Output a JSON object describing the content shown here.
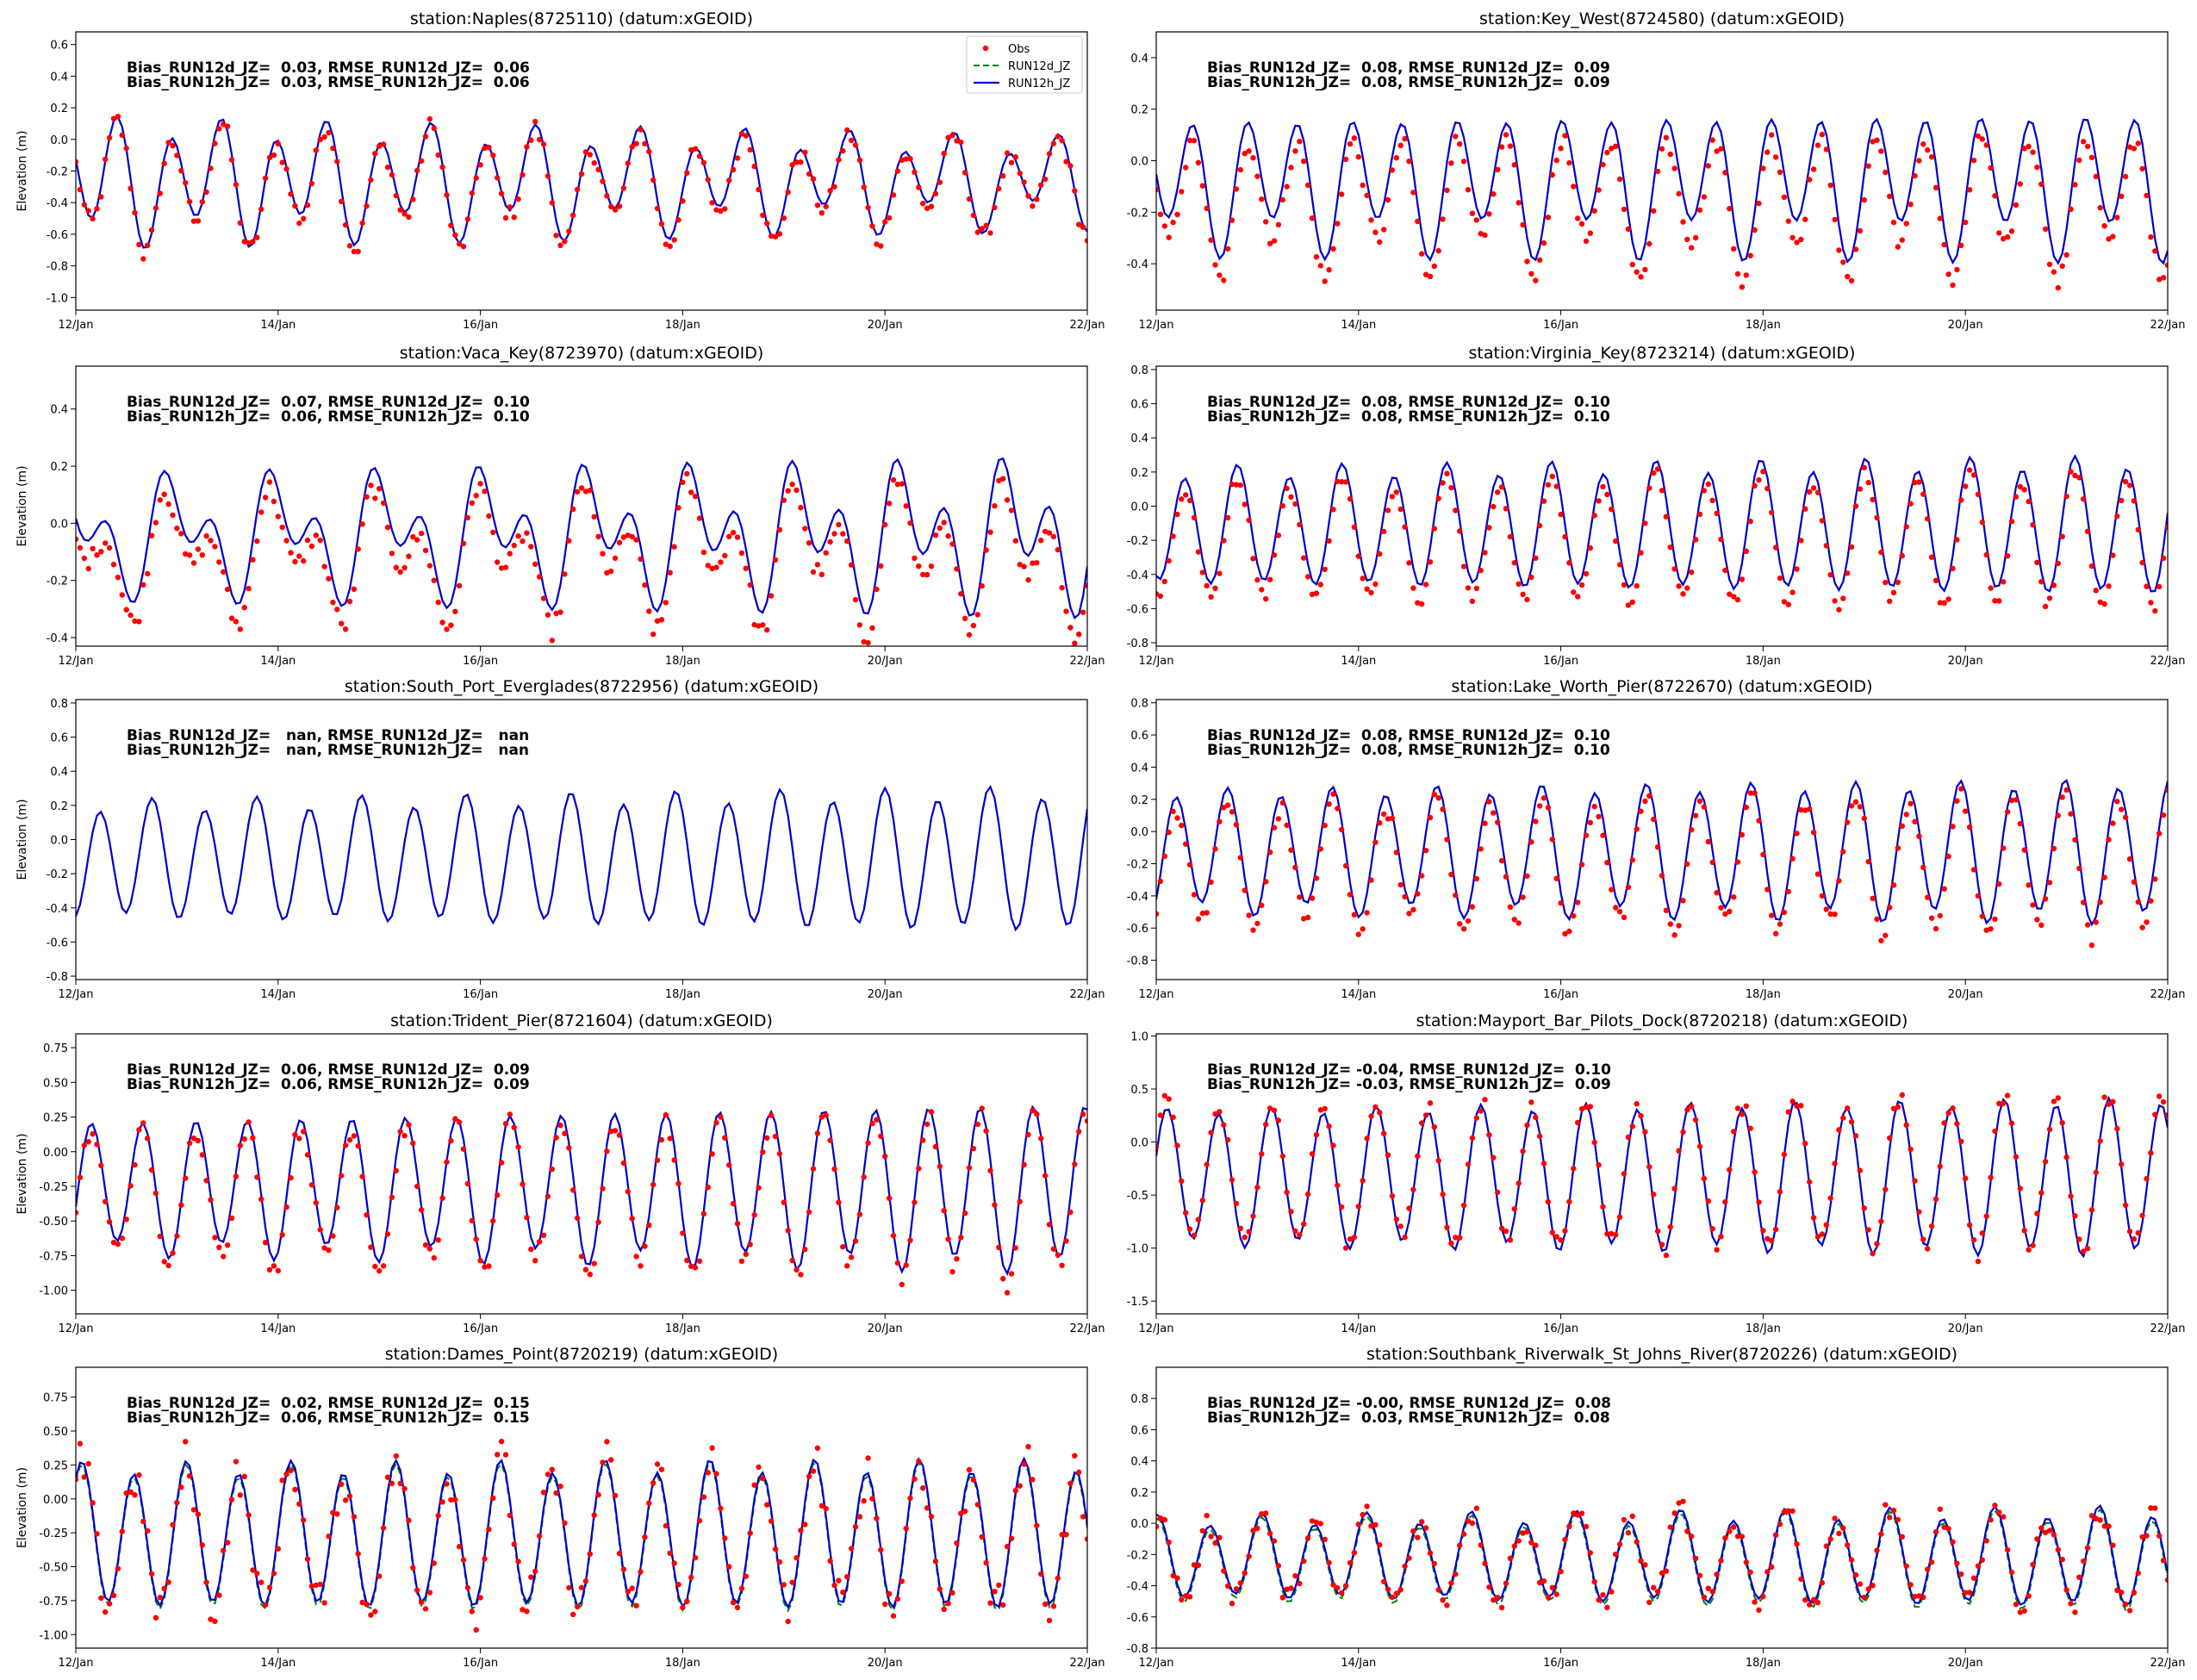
{
  "figure": {
    "colors": {
      "obs": "#ff0000",
      "run12d": "#008000",
      "run12h": "#0000cc"
    },
    "legend": {
      "placement": "upper-right of first panel",
      "entries": [
        "Obs",
        "RUN12d_JZ",
        "RUN12h_JZ"
      ]
    }
  },
  "chart_data": [
    {
      "type": "line",
      "title": "station:Naples(8725110) (datum:xGEOID)",
      "ylabel": "Elevation (m)",
      "xticks": [
        "12/Jan",
        "14/Jan",
        "16/Jan",
        "18/Jan",
        "20/Jan",
        "22/Jan"
      ],
      "xlim_days": [
        12,
        22
      ],
      "ylim": [
        -1.08,
        0.68
      ],
      "yticks": [
        "-1.0",
        "-0.8",
        "-0.6",
        "-0.4",
        "-0.2",
        "0.0",
        "0.2",
        "0.4",
        "0.6"
      ],
      "stats": [
        "Bias_RUN12d_JZ=  0.03, RMSE_RUN12d_JZ=  0.06",
        "Bias_RUN12h_JZ=  0.03, RMSE_RUN12h_JZ=  0.06"
      ],
      "series": [
        {
          "name": "Obs"
        },
        {
          "name": "RUN12d_JZ"
        },
        {
          "name": "RUN12h_JZ"
        }
      ],
      "model": {
        "mean": -0.26,
        "amp_semi": [
          0.34,
          0.22
        ],
        "amp_diurnal": 0.12
      },
      "obs_offset": -0.03,
      "obs_scatter": 0.05,
      "show_legend": true
    },
    {
      "type": "line",
      "title": "station:Key_West(8724580) (datum:xGEOID)",
      "ylabel": "",
      "xticks": [
        "12/Jan",
        "14/Jan",
        "16/Jan",
        "18/Jan",
        "20/Jan",
        "22/Jan"
      ],
      "xlim_days": [
        12,
        22
      ],
      "ylim": [
        -0.58,
        0.5
      ],
      "yticks": [
        "-0.4",
        "-0.2",
        "0.0",
        "0.2",
        "0.4"
      ],
      "stats": [
        "Bias_RUN12d_JZ=  0.08, RMSE_RUN12d_JZ=  0.09",
        "Bias_RUN12h_JZ=  0.08, RMSE_RUN12h_JZ=  0.09"
      ],
      "series": [
        {
          "name": "Obs"
        },
        {
          "name": "RUN12d_JZ"
        },
        {
          "name": "RUN12h_JZ"
        }
      ],
      "model": {
        "mean": -0.08,
        "amp_semi": [
          0.22,
          0.24
        ],
        "amp_diurnal": 0.08
      },
      "obs_offset": -0.08,
      "obs_scatter": 0.03,
      "show_legend": false
    },
    {
      "type": "line",
      "title": "station:Vaca_Key(8723970) (datum:xGEOID)",
      "ylabel": "Elevation (m)",
      "xticks": [
        "12/Jan",
        "14/Jan",
        "16/Jan",
        "18/Jan",
        "20/Jan",
        "22/Jan"
      ],
      "xlim_days": [
        12,
        22
      ],
      "ylim": [
        -0.43,
        0.55
      ],
      "yticks": [
        "-0.4",
        "-0.2",
        "0.0",
        "0.2",
        "0.4"
      ],
      "stats": [
        "Bias_RUN12d_JZ=  0.07, RMSE_RUN12d_JZ=  0.10",
        "Bias_RUN12h_JZ=  0.06, RMSE_RUN12h_JZ=  0.10"
      ],
      "series": [
        {
          "name": "Obs"
        },
        {
          "name": "RUN12d_JZ"
        },
        {
          "name": "RUN12h_JZ"
        }
      ],
      "model": {
        "mean": -0.04,
        "amp_semi": [
          0.12,
          0.18
        ],
        "amp_diurnal": 0.14
      },
      "obs_offset": -0.07,
      "obs_scatter": 0.03,
      "show_legend": false
    },
    {
      "type": "line",
      "title": "station:Virginia_Key(8723214) (datum:xGEOID)",
      "ylabel": "",
      "xticks": [
        "12/Jan",
        "14/Jan",
        "16/Jan",
        "18/Jan",
        "20/Jan",
        "22/Jan"
      ],
      "xlim_days": [
        12,
        22
      ],
      "ylim": [
        -0.82,
        0.82
      ],
      "yticks": [
        "-0.8",
        "-0.6",
        "-0.4",
        "-0.2",
        "0.0",
        "0.2",
        "0.4",
        "0.6",
        "0.8"
      ],
      "stats": [
        "Bias_RUN12d_JZ=  0.08, RMSE_RUN12d_JZ=  0.10",
        "Bias_RUN12h_JZ=  0.08, RMSE_RUN12h_JZ=  0.10"
      ],
      "series": [
        {
          "name": "Obs"
        },
        {
          "name": "RUN12d_JZ"
        },
        {
          "name": "RUN12h_JZ"
        }
      ],
      "model": {
        "mean": -0.12,
        "amp_semi": [
          0.32,
          0.38
        ],
        "amp_diurnal": 0.04
      },
      "obs_offset": -0.08,
      "obs_scatter": 0.03,
      "show_legend": false
    },
    {
      "type": "line",
      "title": "station:South_Port_Everglades(8722956) (datum:xGEOID)",
      "ylabel": "Elevation (m)",
      "xticks": [
        "12/Jan",
        "14/Jan",
        "16/Jan",
        "18/Jan",
        "20/Jan",
        "22/Jan"
      ],
      "xlim_days": [
        12,
        22
      ],
      "ylim": [
        -0.82,
        0.82
      ],
      "yticks": [
        "-0.8",
        "-0.6",
        "-0.4",
        "-0.2",
        "0.0",
        "0.2",
        "0.4",
        "0.6",
        "0.8"
      ],
      "stats": [
        "Bias_RUN12d_JZ=   nan, RMSE_RUN12d_JZ=   nan",
        "Bias_RUN12h_JZ=   nan, RMSE_RUN12h_JZ=   nan"
      ],
      "series": [
        {
          "name": "RUN12d_JZ"
        },
        {
          "name": "RUN12h_JZ"
        }
      ],
      "model": {
        "mean": -0.12,
        "amp_semi": [
          0.32,
          0.4
        ],
        "amp_diurnal": 0.04
      },
      "obs_offset": null,
      "obs_scatter": 0,
      "show_legend": false
    },
    {
      "type": "line",
      "title": "station:Lake_Worth_Pier(8722670) (datum:xGEOID)",
      "ylabel": "",
      "xticks": [
        "12/Jan",
        "14/Jan",
        "16/Jan",
        "18/Jan",
        "20/Jan",
        "22/Jan"
      ],
      "xlim_days": [
        12,
        22
      ],
      "ylim": [
        -0.92,
        0.82
      ],
      "yticks": [
        "-0.8",
        "-0.6",
        "-0.4",
        "-0.2",
        "0.0",
        "0.2",
        "0.4",
        "0.6",
        "0.8"
      ],
      "stats": [
        "Bias_RUN12d_JZ=  0.08, RMSE_RUN12d_JZ=  0.10",
        "Bias_RUN12h_JZ=  0.08, RMSE_RUN12h_JZ=  0.10"
      ],
      "series": [
        {
          "name": "Obs"
        },
        {
          "name": "RUN12d_JZ"
        },
        {
          "name": "RUN12h_JZ"
        }
      ],
      "model": {
        "mean": -0.12,
        "amp_semi": [
          0.36,
          0.42
        ],
        "amp_diurnal": 0.05
      },
      "obs_offset": -0.08,
      "obs_scatter": 0.04,
      "show_legend": false
    },
    {
      "type": "line",
      "title": "station:Trident_Pier(8721604) (datum:xGEOID)",
      "ylabel": "Elevation (m)",
      "xticks": [
        "12/Jan",
        "14/Jan",
        "16/Jan",
        "18/Jan",
        "20/Jan",
        "22/Jan"
      ],
      "xlim_days": [
        12,
        22
      ],
      "ylim": [
        -1.17,
        0.85
      ],
      "yticks": [
        "-1.00",
        "-0.75",
        "-0.50",
        "-0.25",
        "0.00",
        "0.25",
        "0.50",
        "0.75"
      ],
      "stats": [
        "Bias_RUN12d_JZ=  0.06, RMSE_RUN12d_JZ=  0.09",
        "Bias_RUN12h_JZ=  0.06, RMSE_RUN12h_JZ=  0.09"
      ],
      "series": [
        {
          "name": "Obs"
        },
        {
          "name": "RUN12d_JZ"
        },
        {
          "name": "RUN12h_JZ"
        }
      ],
      "model": {
        "mean": -0.25,
        "amp_semi": [
          0.45,
          0.58
        ],
        "amp_diurnal": 0.06
      },
      "obs_offset": -0.06,
      "obs_scatter": 0.05,
      "show_legend": false
    },
    {
      "type": "line",
      "title": "station:Mayport_Bar_Pilots_Dock(8720218) (datum:xGEOID)",
      "ylabel": "",
      "xticks": [
        "12/Jan",
        "14/Jan",
        "16/Jan",
        "18/Jan",
        "20/Jan",
        "22/Jan"
      ],
      "xlim_days": [
        12,
        22
      ],
      "ylim": [
        -1.62,
        1.02
      ],
      "yticks": [
        "-1.5",
        "-1.0",
        "-0.5",
        "0.0",
        "0.5",
        "1.0"
      ],
      "stats": [
        "Bias_RUN12d_JZ= -0.04, RMSE_RUN12d_JZ=  0.10",
        "Bias_RUN12h_JZ= -0.03, RMSE_RUN12h_JZ=  0.09"
      ],
      "series": [
        {
          "name": "Obs"
        },
        {
          "name": "RUN12d_JZ"
        },
        {
          "name": "RUN12h_JZ"
        }
      ],
      "model": {
        "mean": -0.33,
        "amp_semi": [
          0.62,
          0.72
        ],
        "amp_diurnal": 0.05
      },
      "obs_offset": 0.04,
      "obs_scatter": 0.06,
      "show_legend": false
    },
    {
      "type": "line",
      "title": "station:Dames_Point(8720219) (datum:xGEOID)",
      "ylabel": "Elevation (m)",
      "xticks": [
        "12/Jan",
        "14/Jan",
        "16/Jan",
        "18/Jan",
        "20/Jan",
        "22/Jan"
      ],
      "xlim_days": [
        12,
        22
      ],
      "ylim": [
        -1.1,
        0.97
      ],
      "yticks": [
        "-1.00",
        "-0.75",
        "-0.50",
        "-0.25",
        "0.00",
        "0.25",
        "0.50",
        "0.75"
      ],
      "stats": [
        "Bias_RUN12d_JZ=  0.02, RMSE_RUN12d_JZ=  0.15",
        "Bias_RUN12h_JZ=  0.06, RMSE_RUN12h_JZ=  0.15"
      ],
      "series": [
        {
          "name": "Obs"
        },
        {
          "name": "RUN12d_JZ"
        },
        {
          "name": "RUN12h_JZ"
        }
      ],
      "model": {
        "mean": -0.27,
        "amp_semi": [
          0.5,
          0.52
        ],
        "amp_diurnal": 0.05
      },
      "obs_offset": -0.02,
      "obs_scatter": 0.12,
      "show_legend": false
    },
    {
      "type": "line",
      "title": "station:Southbank_Riverwalk_St_Johns_River(8720226) (datum:xGEOID)",
      "ylabel": "",
      "xticks": [
        "12/Jan",
        "14/Jan",
        "16/Jan",
        "18/Jan",
        "20/Jan",
        "22/Jan"
      ],
      "xlim_days": [
        12,
        22
      ],
      "ylim": [
        -0.8,
        1.0
      ],
      "yticks": [
        "-0.8",
        "-0.6",
        "-0.4",
        "-0.2",
        "0.0",
        "0.2",
        "0.4",
        "0.6",
        "0.8"
      ],
      "stats": [
        "Bias_RUN12d_JZ= -0.00, RMSE_RUN12d_JZ=  0.08",
        "Bias_RUN12h_JZ=  0.03, RMSE_RUN12h_JZ=  0.08"
      ],
      "series": [
        {
          "name": "Obs"
        },
        {
          "name": "RUN12d_JZ"
        },
        {
          "name": "RUN12h_JZ"
        }
      ],
      "model": {
        "mean": -0.22,
        "amp_semi": [
          0.24,
          0.3
        ],
        "amp_diurnal": 0.04
      },
      "obs_offset": 0.0,
      "obs_scatter": 0.07,
      "show_legend": false
    }
  ]
}
